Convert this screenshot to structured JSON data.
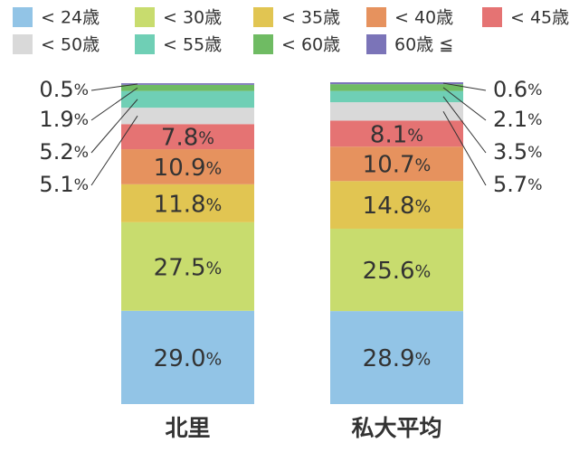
{
  "chart_data": {
    "type": "bar",
    "stacked": true,
    "normalized": true,
    "title": "",
    "xlabel": "",
    "ylabel": "",
    "ylim": [
      0,
      100
    ],
    "grid": false,
    "legend_position": "top",
    "percent_sign": "%",
    "categories": [
      "北里",
      "私大平均"
    ],
    "series": [
      {
        "name": "< 24歳",
        "color": "#92c4e6",
        "values": [
          29.0,
          28.9
        ]
      },
      {
        "name": "< 30歳",
        "color": "#c8dc6e",
        "values": [
          27.5,
          25.6
        ]
      },
      {
        "name": "< 35歳",
        "color": "#e1c552",
        "values": [
          11.8,
          14.8
        ]
      },
      {
        "name": "< 40歳",
        "color": "#e6925e",
        "values": [
          10.9,
          10.7
        ]
      },
      {
        "name": "< 45歳",
        "color": "#e57373",
        "values": [
          7.8,
          8.1
        ]
      },
      {
        "name": "< 50歳",
        "color": "#d9d9d9",
        "values": [
          5.1,
          5.7
        ]
      },
      {
        "name": "< 55歳",
        "color": "#6fcfb5",
        "values": [
          5.2,
          3.5
        ]
      },
      {
        "name": "< 60歳",
        "color": "#6fbb63",
        "values": [
          1.9,
          2.1
        ]
      },
      {
        "name": "60歳 ≦",
        "color": "#7b74b8",
        "values": [
          0.5,
          0.6
        ]
      }
    ],
    "callouts": [
      {
        "category": 0,
        "side": "left",
        "series": [
          8,
          7,
          6,
          5
        ]
      },
      {
        "category": 1,
        "side": "right",
        "series": [
          8,
          7,
          6,
          5
        ]
      }
    ]
  }
}
